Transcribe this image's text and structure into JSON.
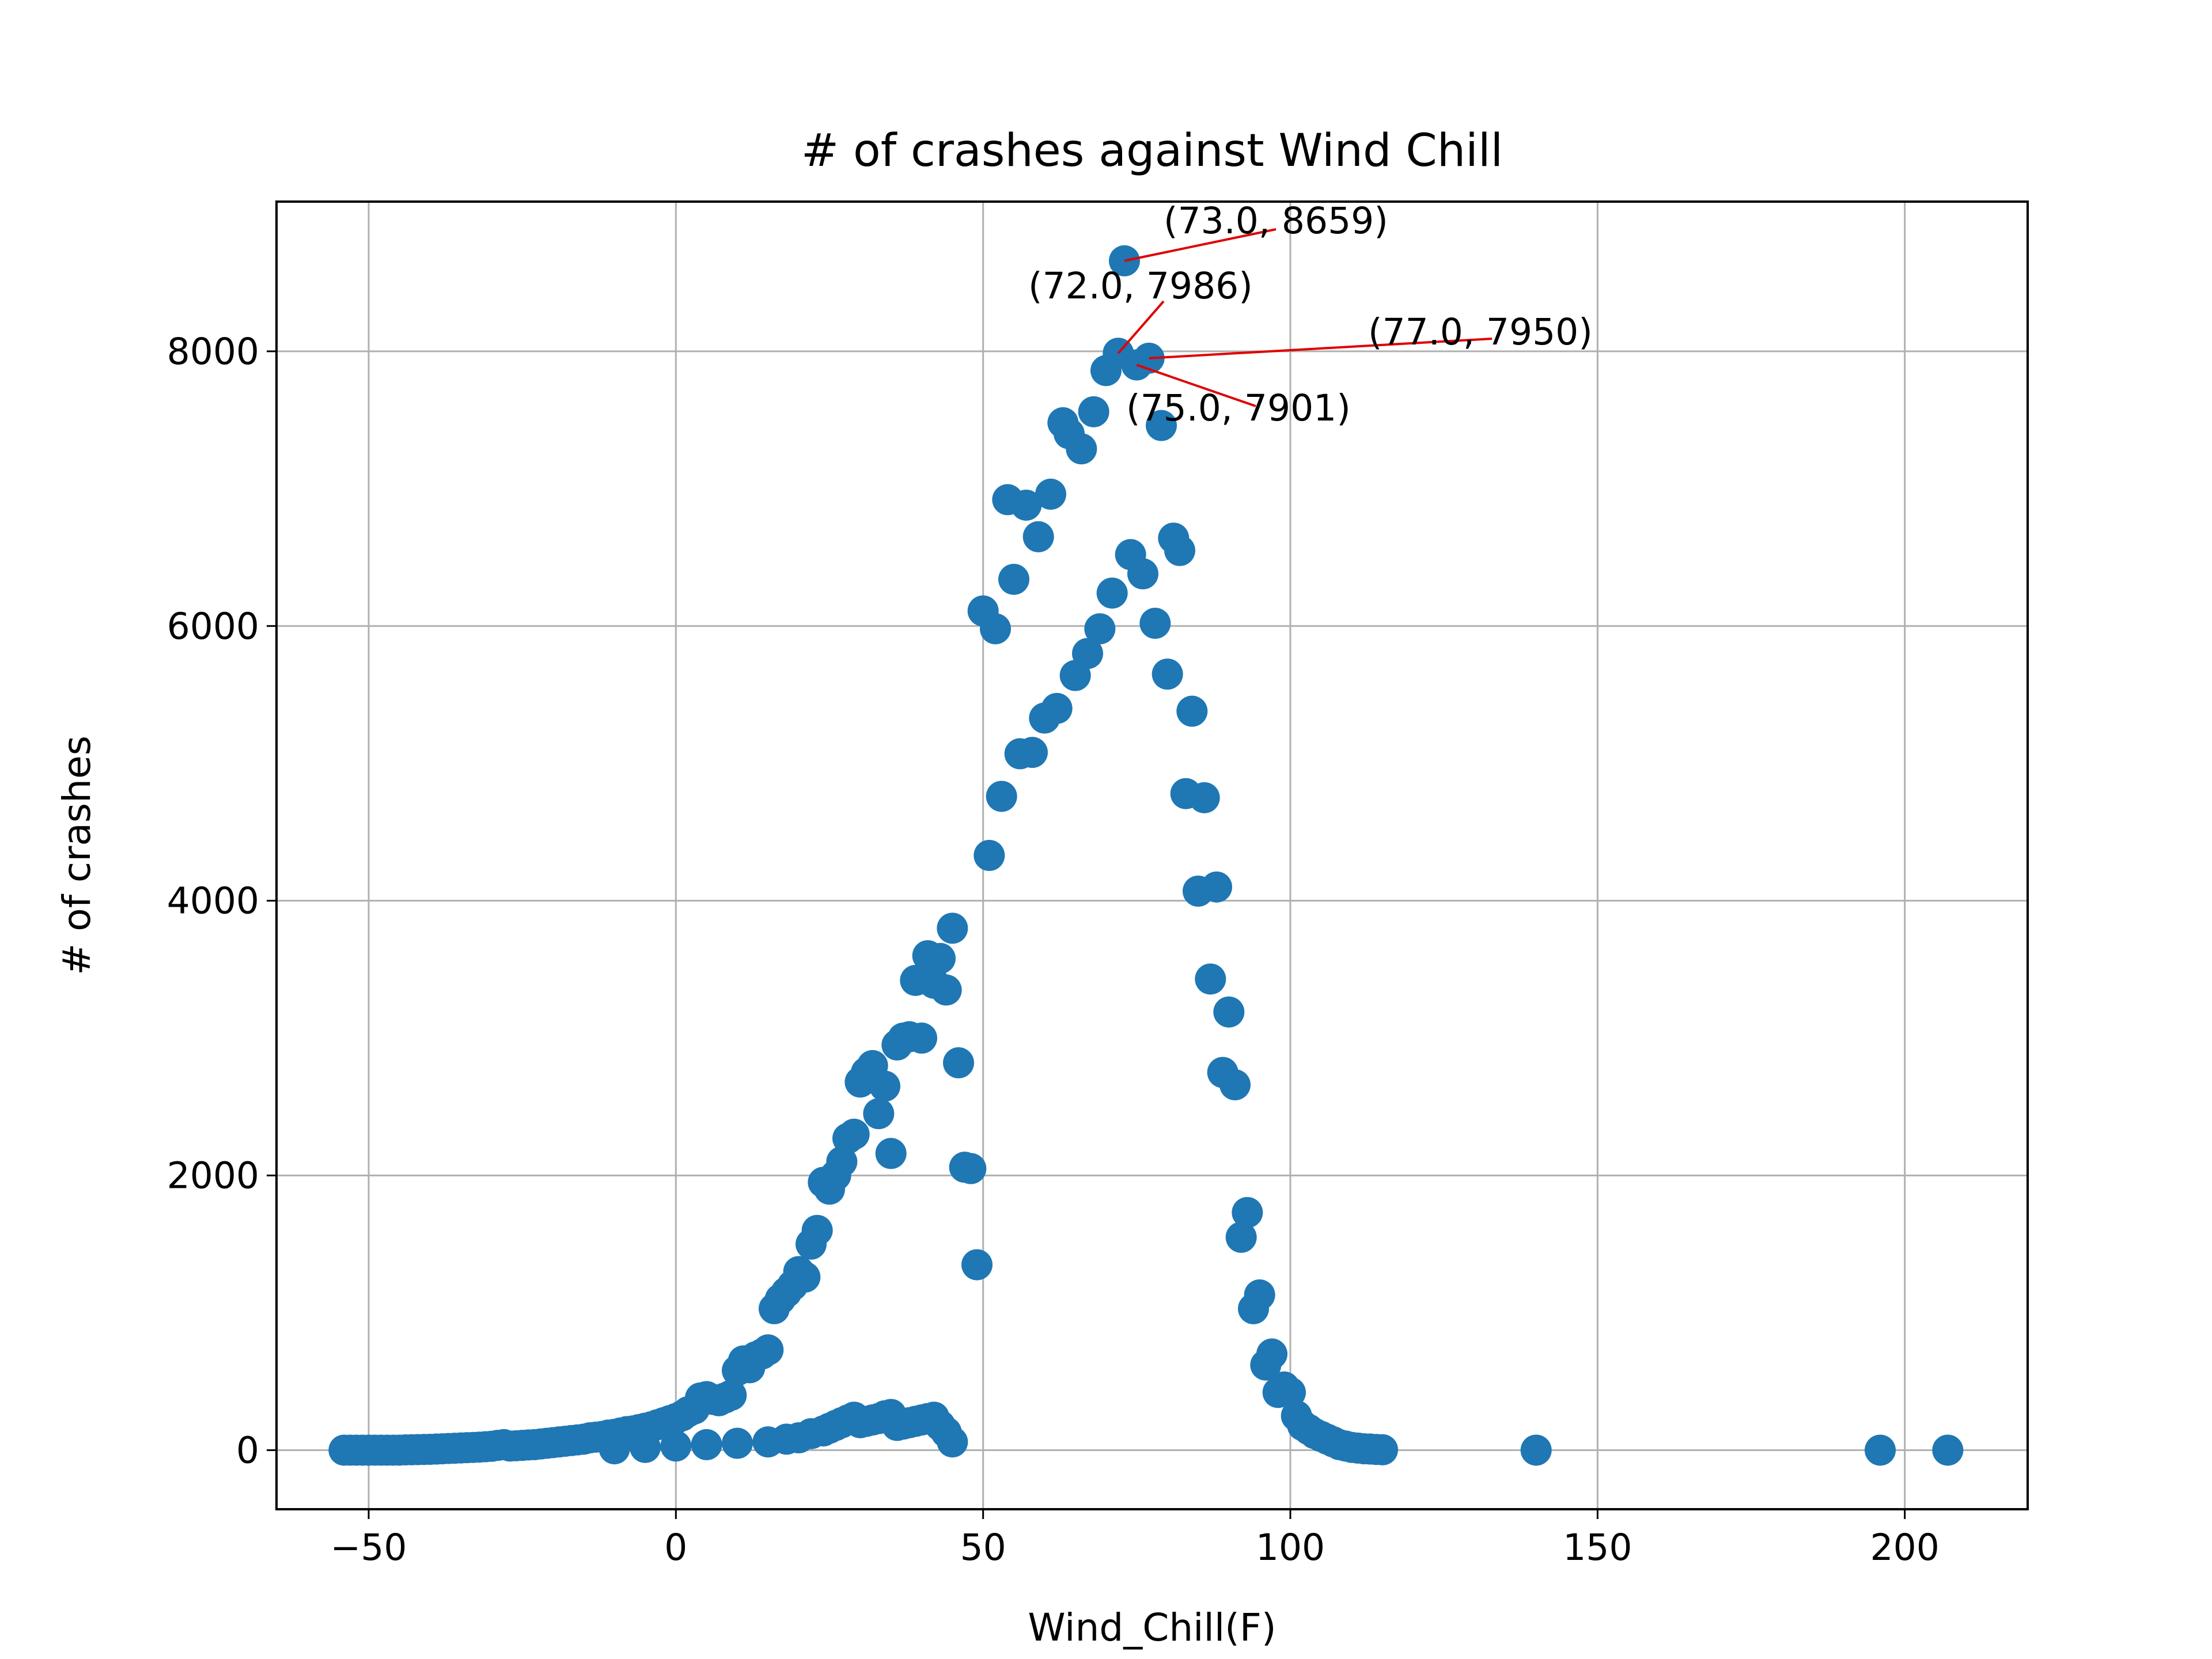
{
  "chart_data": {
    "type": "scatter",
    "title": "# of crashes against Wind Chill",
    "xlabel": "Wind_Chill(F)",
    "ylabel": "# of crashes",
    "xlim": [
      -65,
      220
    ],
    "ylim": [
      -430,
      9090
    ],
    "xticks": [
      -50,
      0,
      50,
      100,
      150,
      200
    ],
    "yticks": [
      0,
      2000,
      4000,
      6000,
      8000
    ],
    "xtick_labels": [
      "−50",
      "0",
      "50",
      "100",
      "150",
      "200"
    ],
    "ytick_labels": [
      "0",
      "2000",
      "4000",
      "6000",
      "8000"
    ],
    "grid": true,
    "colors": {
      "points": "#1f77b4",
      "annotation_line": "#e00000",
      "grid": "#b0b0b0"
    },
    "series": [
      {
        "points": [
          [
            -54,
            0
          ],
          [
            -53,
            0
          ],
          [
            -52,
            0
          ],
          [
            -51,
            0
          ],
          [
            -50,
            0
          ],
          [
            -49,
            0
          ],
          [
            -48,
            0
          ],
          [
            -47,
            0
          ],
          [
            -46,
            0
          ],
          [
            -45,
            0
          ],
          [
            -44,
            2
          ],
          [
            -43,
            3
          ],
          [
            -42,
            4
          ],
          [
            -41,
            5
          ],
          [
            -40,
            6
          ],
          [
            -39,
            8
          ],
          [
            -38,
            10
          ],
          [
            -37,
            12
          ],
          [
            -36,
            14
          ],
          [
            -35,
            16
          ],
          [
            -34,
            18
          ],
          [
            -33,
            20
          ],
          [
            -32,
            22
          ],
          [
            -31,
            25
          ],
          [
            -30,
            28
          ],
          [
            -29,
            35
          ],
          [
            -28,
            40
          ],
          [
            -27,
            30
          ],
          [
            -26,
            32
          ],
          [
            -25,
            35
          ],
          [
            -24,
            38
          ],
          [
            -23,
            40
          ],
          [
            -22,
            45
          ],
          [
            -21,
            50
          ],
          [
            -20,
            55
          ],
          [
            -19,
            60
          ],
          [
            -18,
            65
          ],
          [
            -17,
            70
          ],
          [
            -16,
            75
          ],
          [
            -15,
            80
          ],
          [
            -14,
            90
          ],
          [
            -13,
            95
          ],
          [
            -12,
            100
          ],
          [
            -11,
            110
          ],
          [
            -10,
            115
          ],
          [
            -9,
            125
          ],
          [
            -8,
            135
          ],
          [
            -7,
            140
          ],
          [
            -6,
            150
          ],
          [
            -5,
            160
          ],
          [
            -4,
            170
          ],
          [
            -3,
            185
          ],
          [
            -2,
            200
          ],
          [
            -1,
            215
          ],
          [
            0,
            230
          ],
          [
            1,
            250
          ],
          [
            2,
            280
          ],
          [
            3,
            300
          ],
          [
            4,
            380
          ],
          [
            5,
            390
          ],
          [
            6,
            370
          ],
          [
            7,
            360
          ],
          [
            8,
            380
          ],
          [
            9,
            400
          ],
          [
            10,
            580
          ],
          [
            11,
            650
          ],
          [
            12,
            600
          ],
          [
            13,
            680
          ],
          [
            14,
            700
          ],
          [
            15,
            730
          ],
          [
            16,
            1030
          ],
          [
            17,
            1100
          ],
          [
            18,
            1150
          ],
          [
            19,
            1200
          ],
          [
            20,
            1300
          ],
          [
            21,
            1260
          ],
          [
            22,
            1500
          ],
          [
            23,
            1600
          ],
          [
            24,
            1950
          ],
          [
            25,
            1900
          ],
          [
            26,
            2000
          ],
          [
            27,
            2100
          ],
          [
            28,
            2270
          ],
          [
            29,
            2300
          ],
          [
            30,
            2680
          ],
          [
            31,
            2750
          ],
          [
            32,
            2800
          ],
          [
            33,
            2450
          ],
          [
            34,
            2650
          ],
          [
            35,
            2160
          ],
          [
            36,
            2950
          ],
          [
            37,
            3000
          ],
          [
            38,
            3010
          ],
          [
            39,
            3420
          ],
          [
            40,
            3000
          ],
          [
            41,
            3600
          ],
          [
            42,
            3400
          ],
          [
            43,
            3580
          ],
          [
            44,
            3350
          ],
          [
            45,
            3800
          ],
          [
            46,
            2820
          ],
          [
            47,
            2060
          ],
          [
            48,
            2050
          ],
          [
            49,
            1350
          ],
          [
            50,
            6110
          ],
          [
            51,
            4330
          ],
          [
            52,
            5980
          ],
          [
            53,
            4760
          ],
          [
            54,
            6920
          ],
          [
            55,
            6340
          ],
          [
            56,
            5070
          ],
          [
            57,
            6880
          ],
          [
            58,
            5080
          ],
          [
            59,
            6650
          ],
          [
            60,
            5330
          ],
          [
            61,
            6960
          ],
          [
            62,
            5400
          ],
          [
            63,
            7480
          ],
          [
            64,
            7400
          ],
          [
            65,
            5640
          ],
          [
            66,
            7290
          ],
          [
            67,
            5800
          ],
          [
            68,
            7560
          ],
          [
            69,
            5980
          ],
          [
            70,
            7860
          ],
          [
            71,
            6240
          ],
          [
            72,
            7986
          ],
          [
            73,
            8659
          ],
          [
            74,
            6520
          ],
          [
            75,
            7901
          ],
          [
            76,
            6380
          ],
          [
            77,
            7950
          ],
          [
            78,
            6020
          ],
          [
            79,
            7460
          ],
          [
            80,
            5650
          ],
          [
            81,
            6640
          ],
          [
            82,
            6550
          ],
          [
            83,
            4780
          ],
          [
            84,
            5380
          ],
          [
            85,
            4070
          ],
          [
            86,
            4750
          ],
          [
            87,
            3430
          ],
          [
            88,
            4100
          ],
          [
            89,
            2750
          ],
          [
            90,
            3190
          ],
          [
            91,
            2660
          ],
          [
            92,
            1550
          ],
          [
            93,
            1730
          ],
          [
            94,
            1030
          ],
          [
            95,
            1130
          ],
          [
            96,
            620
          ],
          [
            97,
            700
          ],
          [
            98,
            420
          ],
          [
            99,
            460
          ],
          [
            100,
            420
          ],
          [
            101,
            250
          ],
          [
            102,
            180
          ],
          [
            103,
            150
          ],
          [
            104,
            120
          ],
          [
            105,
            100
          ],
          [
            106,
            80
          ],
          [
            107,
            60
          ],
          [
            108,
            40
          ],
          [
            109,
            30
          ],
          [
            110,
            20
          ],
          [
            111,
            15
          ],
          [
            112,
            10
          ],
          [
            113,
            8
          ],
          [
            114,
            5
          ],
          [
            115,
            3
          ],
          [
            140,
            0
          ],
          [
            196,
            0
          ],
          [
            207,
            0
          ],
          [
            -10,
            10
          ],
          [
            -5,
            20
          ],
          [
            0,
            30
          ],
          [
            5,
            40
          ],
          [
            10,
            50
          ],
          [
            15,
            60
          ],
          [
            18,
            80
          ],
          [
            20,
            90
          ],
          [
            22,
            120
          ],
          [
            24,
            140
          ],
          [
            25,
            160
          ],
          [
            26,
            180
          ],
          [
            27,
            200
          ],
          [
            28,
            220
          ],
          [
            29,
            240
          ],
          [
            30,
            200
          ],
          [
            31,
            210
          ],
          [
            32,
            220
          ],
          [
            33,
            230
          ],
          [
            34,
            250
          ],
          [
            35,
            260
          ],
          [
            36,
            180
          ],
          [
            37,
            190
          ],
          [
            38,
            200
          ],
          [
            39,
            210
          ],
          [
            40,
            220
          ],
          [
            41,
            230
          ],
          [
            42,
            240
          ],
          [
            43,
            180
          ],
          [
            44,
            130
          ],
          [
            45,
            60
          ]
        ]
      }
    ],
    "annotations": [
      {
        "point": [
          73.0,
          8659
        ],
        "text": "(73.0, 8659)"
      },
      {
        "point": [
          72.0,
          7986
        ],
        "text": "(72.0, 7986)"
      },
      {
        "point": [
          77.0,
          7950
        ],
        "text": "(77.0, 7950)"
      },
      {
        "point": [
          75.0,
          7901
        ],
        "text": "(75.0, 7901)"
      }
    ]
  }
}
